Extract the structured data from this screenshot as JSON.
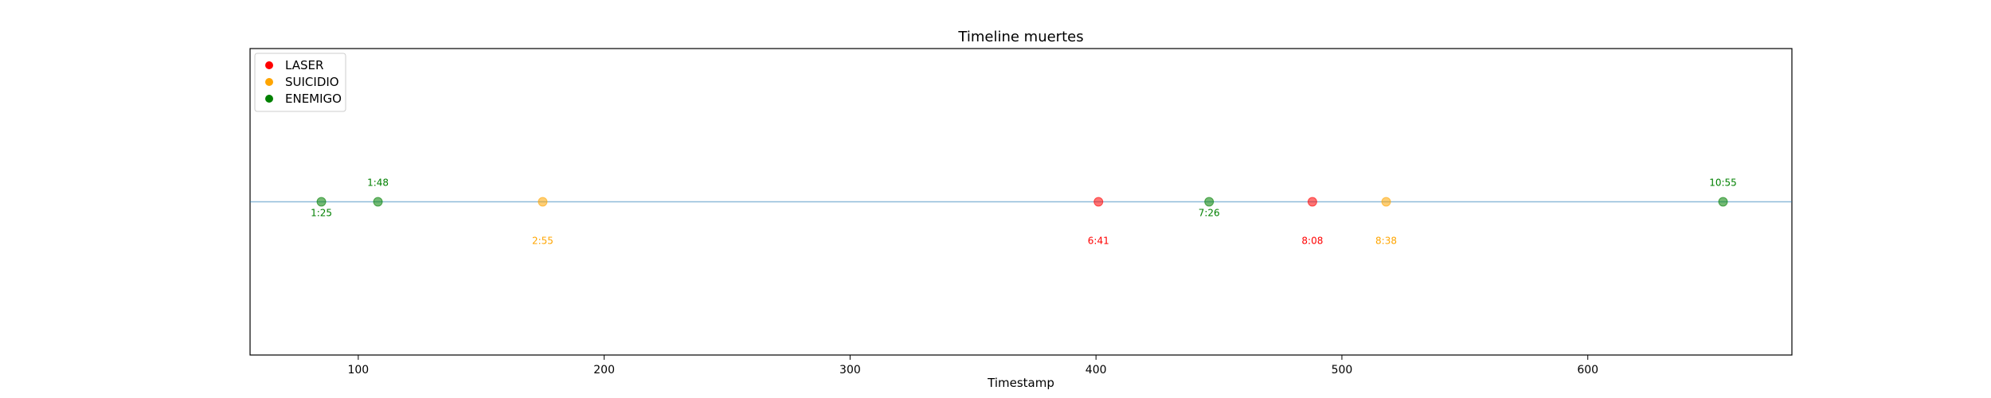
{
  "chart_data": {
    "type": "scatter",
    "title": "Timeline muertes",
    "xlabel": "Timestamp",
    "ylabel": "",
    "xlim": [
      56,
      683
    ],
    "ylim": [
      -1,
      1
    ],
    "xticks": [
      100,
      200,
      300,
      400,
      500,
      600
    ],
    "grid": false,
    "legend_position": "top-left",
    "baseline": {
      "y": 0,
      "color": "#1f77b4"
    },
    "colors": {
      "LASER": "#ff0000",
      "SUICIDIO": "#ffa500",
      "ENEMIGO": "#008000"
    },
    "legend": [
      "LASER",
      "SUICIDIO",
      "ENEMIGO"
    ],
    "points": [
      {
        "x": 85,
        "y": 0,
        "label": "1:25",
        "type": "ENEMIGO",
        "label_position": "below"
      },
      {
        "x": 108,
        "y": 0,
        "label": "1:48",
        "type": "ENEMIGO",
        "label_position": "above"
      },
      {
        "x": 175,
        "y": 0,
        "label": "2:55",
        "type": "SUICIDIO",
        "label_position": "far-below"
      },
      {
        "x": 401,
        "y": 0,
        "label": "6:41",
        "type": "LASER",
        "label_position": "far-below"
      },
      {
        "x": 446,
        "y": 0,
        "label": "7:26",
        "type": "ENEMIGO",
        "label_position": "below"
      },
      {
        "x": 488,
        "y": 0,
        "label": "8:08",
        "type": "LASER",
        "label_position": "far-below"
      },
      {
        "x": 518,
        "y": 0,
        "label": "8:38",
        "type": "SUICIDIO",
        "label_position": "far-below"
      },
      {
        "x": 655,
        "y": 0,
        "label": "10:55",
        "type": "ENEMIGO",
        "label_position": "above"
      }
    ]
  }
}
